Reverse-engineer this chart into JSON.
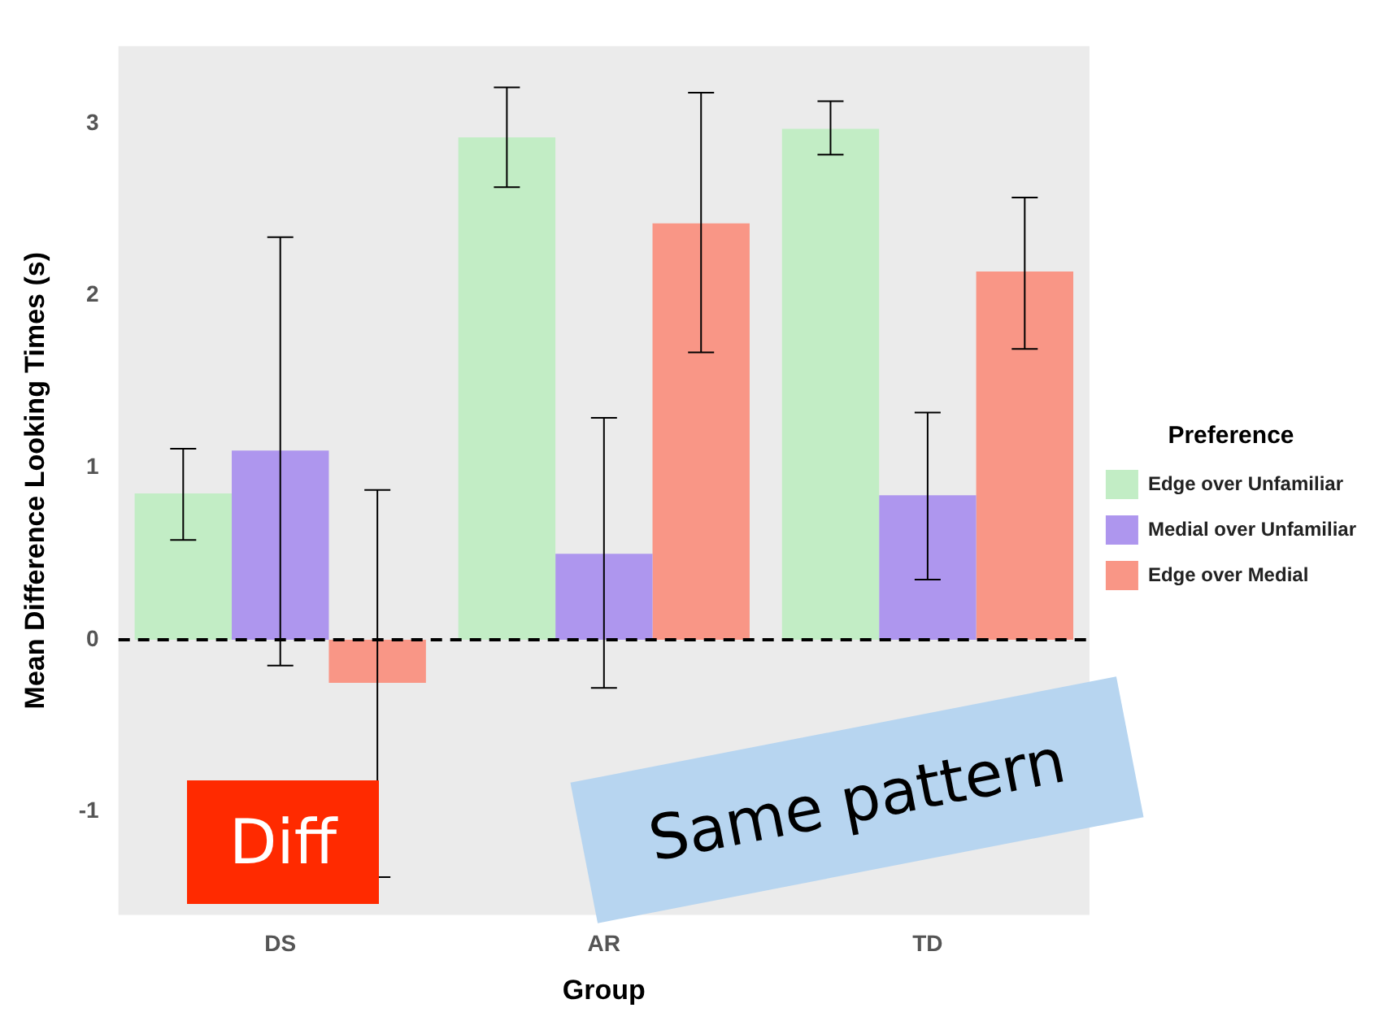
{
  "chart_data": {
    "type": "bar",
    "xlabel": "Group",
    "ylabel": "Mean Difference Looking Times (s)",
    "legend_title": "Preference",
    "legend": "right",
    "categories": [
      "DS",
      "AR",
      "TD"
    ],
    "series": [
      {
        "name": "Edge over Unfamiliar",
        "color": "#c2edc5",
        "values": [
          0.85,
          2.92,
          2.97
        ],
        "errors": [
          [
            0.58,
            1.11
          ],
          [
            2.63,
            3.21
          ],
          [
            2.82,
            3.13
          ]
        ]
      },
      {
        "name": "Medial over Unfamiliar",
        "color": "#ae96ee",
        "values": [
          1.1,
          0.5,
          0.84
        ],
        "errors": [
          [
            -0.15,
            2.34
          ],
          [
            -0.28,
            1.29
          ],
          [
            0.35,
            1.32
          ]
        ]
      },
      {
        "name": "Edge over Medial",
        "color": "#f99686",
        "values": [
          -0.25,
          2.42,
          2.14
        ],
        "errors": [
          [
            -1.38,
            0.87
          ],
          [
            1.67,
            3.18
          ],
          [
            1.69,
            2.57
          ]
        ]
      }
    ],
    "ylim": [
      -1.6,
      3.45
    ],
    "yticks": [
      -1,
      0,
      1,
      2,
      3
    ],
    "grid": false,
    "ref_lines": [
      {
        "axis": "y",
        "value": 0,
        "color": "#000000",
        "line_style": "dashed"
      }
    ],
    "annotations": [
      "Diff",
      "Same pattern"
    ]
  }
}
